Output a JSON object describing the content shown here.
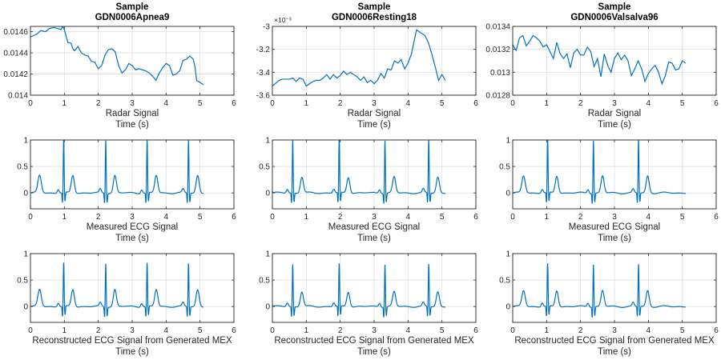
{
  "colors": {
    "line": "#0072bd",
    "axes": "#262626",
    "grid": "#dfdfdf",
    "background": "#ffffff"
  },
  "chart_data": [
    {
      "type": "line",
      "row": 0,
      "col": 0,
      "title": [
        "Sample",
        "GDN0006Apnea9"
      ],
      "xlabel": "Time (s)",
      "sublabel": "Radar Signal",
      "xlim": [
        0,
        6
      ],
      "ylim": [
        0.014,
        0.01465
      ],
      "xticks": [
        0,
        1,
        2,
        3,
        4,
        5,
        6
      ],
      "yticks": [
        0.014,
        0.0142,
        0.0144,
        0.0146
      ],
      "ytick_labels": [
        "0.014",
        "0.0142",
        "0.0144",
        "0.0146"
      ],
      "grid": true,
      "series": [
        {
          "x": [
            0,
            0.2,
            0.3,
            0.45,
            0.55,
            0.7,
            0.8,
            0.9,
            0.95,
            1.0,
            1.05,
            1.1,
            1.2,
            1.25,
            1.3,
            1.4,
            1.5,
            1.6,
            1.7,
            1.8,
            1.9,
            2.0,
            2.1,
            2.2,
            2.3,
            2.4,
            2.5,
            2.6,
            2.7,
            2.8,
            2.9,
            3.0,
            3.1,
            3.2,
            3.3,
            3.4,
            3.5,
            3.6,
            3.7,
            3.8,
            3.9,
            4.0,
            4.1,
            4.2,
            4.3,
            4.4,
            4.5,
            4.6,
            4.7,
            4.8,
            4.85,
            4.9,
            5.0,
            5.1
          ],
          "y": [
            0.01455,
            0.01458,
            0.01461,
            0.0146,
            0.01463,
            0.01464,
            0.01463,
            0.01462,
            0.01465,
            0.01462,
            0.01456,
            0.0145,
            0.01449,
            0.01444,
            0.01442,
            0.01446,
            0.0144,
            0.01438,
            0.01437,
            0.01432,
            0.01431,
            0.01425,
            0.01428,
            0.01438,
            0.01443,
            0.01444,
            0.01441,
            0.01428,
            0.01421,
            0.01424,
            0.0143,
            0.01428,
            0.01424,
            0.01425,
            0.01424,
            0.01423,
            0.01421,
            0.01418,
            0.01414,
            0.01421,
            0.01426,
            0.0143,
            0.01428,
            0.01419,
            0.0142,
            0.01423,
            0.01433,
            0.01434,
            0.01437,
            0.01434,
            0.01427,
            0.01414,
            0.01412,
            0.0141
          ]
        }
      ]
    },
    {
      "type": "line",
      "row": 0,
      "col": 1,
      "title": [
        "Sample",
        "GDN0006Resting18"
      ],
      "xlabel": "Time (s)",
      "sublabel": "Radar Signal",
      "xlim": [
        0,
        6
      ],
      "ylim": [
        -3.6,
        -3.0
      ],
      "y_exponent": "×10⁻³",
      "xticks": [
        0,
        1,
        2,
        3,
        4,
        5,
        6
      ],
      "yticks": [
        -3.6,
        -3.4,
        -3.2,
        -3.0
      ],
      "ytick_labels": [
        "-3.6",
        "-3.4",
        "-3.2",
        "-3"
      ],
      "grid": true,
      "series": [
        {
          "x": [
            0,
            0.2,
            0.3,
            0.5,
            0.6,
            0.7,
            0.8,
            0.9,
            1.0,
            1.1,
            1.2,
            1.3,
            1.4,
            1.5,
            1.6,
            1.7,
            1.8,
            1.9,
            2.0,
            2.1,
            2.2,
            2.3,
            2.4,
            2.5,
            2.6,
            2.7,
            2.8,
            2.9,
            3.0,
            3.1,
            3.2,
            3.3,
            3.4,
            3.5,
            3.6,
            3.7,
            3.8,
            3.9,
            4.0,
            4.1,
            4.2,
            4.25,
            4.3,
            4.4,
            4.5,
            4.6,
            4.7,
            4.8,
            4.9,
            5.0,
            5.1
          ],
          "y": [
            -3.52,
            -3.47,
            -3.46,
            -3.46,
            -3.45,
            -3.48,
            -3.45,
            -3.46,
            -3.52,
            -3.5,
            -3.48,
            -3.47,
            -3.47,
            -3.45,
            -3.42,
            -3.46,
            -3.42,
            -3.45,
            -3.43,
            -3.39,
            -3.42,
            -3.4,
            -3.42,
            -3.44,
            -3.47,
            -3.44,
            -3.49,
            -3.47,
            -3.5,
            -3.47,
            -3.41,
            -3.45,
            -3.37,
            -3.38,
            -3.3,
            -3.32,
            -3.29,
            -3.37,
            -3.32,
            -3.24,
            -3.1,
            -3.03,
            -3.04,
            -3.06,
            -3.08,
            -3.14,
            -3.24,
            -3.35,
            -3.47,
            -3.42,
            -3.47
          ]
        }
      ]
    },
    {
      "type": "line",
      "row": 0,
      "col": 2,
      "title": [
        "Sample",
        "GDN0006Valsalva96"
      ],
      "xlabel": "Time (s)",
      "sublabel": "Radar Signal",
      "xlim": [
        0,
        6
      ],
      "ylim": [
        0.0128,
        0.0134
      ],
      "xticks": [
        0,
        1,
        2,
        3,
        4,
        5,
        6
      ],
      "yticks": [
        0.0128,
        0.013,
        0.0132,
        0.0134
      ],
      "ytick_labels": [
        "0.0128",
        "0.013",
        "0.0132",
        "0.0134"
      ],
      "grid": true,
      "series": [
        {
          "x": [
            0,
            0.1,
            0.2,
            0.3,
            0.4,
            0.5,
            0.6,
            0.7,
            0.8,
            0.9,
            1.0,
            1.1,
            1.2,
            1.3,
            1.4,
            1.5,
            1.6,
            1.7,
            1.8,
            1.9,
            2.0,
            2.1,
            2.2,
            2.3,
            2.4,
            2.5,
            2.6,
            2.7,
            2.8,
            2.9,
            3.0,
            3.1,
            3.2,
            3.3,
            3.4,
            3.5,
            3.6,
            3.7,
            3.8,
            3.9,
            4.0,
            4.1,
            4.2,
            4.3,
            4.4,
            4.5,
            4.6,
            4.7,
            4.8,
            4.9,
            5.0,
            5.1
          ],
          "y": [
            0.01324,
            0.01319,
            0.0133,
            0.01332,
            0.01323,
            0.01327,
            0.01332,
            0.0133,
            0.01327,
            0.01322,
            0.01324,
            0.01318,
            0.01312,
            0.01326,
            0.01316,
            0.01312,
            0.01316,
            0.01304,
            0.01317,
            0.0132,
            0.01315,
            0.01315,
            0.01322,
            0.01318,
            0.01305,
            0.01312,
            0.01296,
            0.01316,
            0.01306,
            0.013,
            0.01312,
            0.01317,
            0.01311,
            0.01315,
            0.0131,
            0.01297,
            0.01303,
            0.0131,
            0.01303,
            0.01292,
            0.01299,
            0.01303,
            0.01306,
            0.013,
            0.0129,
            0.01297,
            0.01309,
            0.01308,
            0.01302,
            0.01303,
            0.0131,
            0.01308
          ]
        }
      ]
    },
    {
      "type": "line",
      "row": 1,
      "col": 0,
      "xlabel": "Time (s)",
      "sublabel": "Measured ECG Signal",
      "xlim": [
        0,
        6
      ],
      "ylim": [
        -0.3,
        1.0
      ],
      "xticks": [
        0,
        1,
        2,
        3,
        4,
        5,
        6
      ],
      "yticks": [
        0,
        0.5,
        1
      ],
      "ytick_labels": [
        "0",
        "0.5",
        "1"
      ],
      "grid": true,
      "ecg": {
        "beats": [
          0.98,
          2.22,
          3.44,
          4.66
        ],
        "end": 5.1,
        "r_peak": 1.0,
        "t_wave": 0.33
      }
    },
    {
      "type": "line",
      "row": 1,
      "col": 1,
      "xlabel": "Time (s)",
      "sublabel": "Measured ECG Signal",
      "xlim": [
        0,
        6
      ],
      "ylim": [
        -0.3,
        1.0
      ],
      "xticks": [
        0,
        1,
        2,
        3,
        4,
        5,
        6
      ],
      "yticks": [
        0,
        0.5,
        1
      ],
      "ytick_labels": [
        "0",
        "0.5",
        "1"
      ],
      "grid": true,
      "ecg": {
        "beats": [
          0.6,
          1.97,
          3.32,
          4.61
        ],
        "end": 5.1,
        "r_peak": 1.0,
        "t_wave": 0.3
      }
    },
    {
      "type": "line",
      "row": 1,
      "col": 2,
      "xlabel": "Time (s)",
      "sublabel": "Measured ECG Signal",
      "xlim": [
        0,
        6
      ],
      "ylim": [
        -0.3,
        1.0
      ],
      "xticks": [
        0,
        1,
        2,
        3,
        4,
        5,
        6
      ],
      "yticks": [
        0,
        0.5,
        1
      ],
      "ytick_labels": [
        "0",
        "0.5",
        "1"
      ],
      "grid": true,
      "ecg": {
        "beats": [
          1.03,
          2.38,
          3.71
        ],
        "end": 5.1,
        "r_peak": 1.0,
        "t_wave": 0.32
      }
    },
    {
      "type": "line",
      "row": 2,
      "col": 0,
      "xlabel": "Time (s)",
      "sublabel": "Reconstructed ECG Signal from Generated MEX",
      "xlim": [
        0,
        6
      ],
      "ylim": [
        -0.3,
        1.0
      ],
      "xticks": [
        0,
        1,
        2,
        3,
        4,
        5,
        6
      ],
      "yticks": [
        0,
        0.5,
        1
      ],
      "ytick_labels": [
        "0",
        "0.5",
        "1"
      ],
      "grid": true,
      "ecg": {
        "beats": [
          0.98,
          2.22,
          3.44,
          4.66
        ],
        "end": 5.1,
        "r_peak": 0.82,
        "t_wave": 0.32
      }
    },
    {
      "type": "line",
      "row": 2,
      "col": 1,
      "xlabel": "Time (s)",
      "sublabel": "Reconstructed ECG Signal from Generated MEX",
      "xlim": [
        0,
        6
      ],
      "ylim": [
        -0.3,
        1.0
      ],
      "xticks": [
        0,
        1,
        2,
        3,
        4,
        5,
        6
      ],
      "yticks": [
        0,
        0.5,
        1
      ],
      "ytick_labels": [
        "0",
        "0.5",
        "1"
      ],
      "grid": true,
      "ecg": {
        "beats": [
          0.6,
          1.97,
          3.32,
          4.61
        ],
        "end": 5.1,
        "r_peak": 0.8,
        "t_wave": 0.28
      }
    },
    {
      "type": "line",
      "row": 2,
      "col": 2,
      "xlabel": "Time (s)",
      "sublabel": "Reconstructed ECG Signal from Generated MEX",
      "xlim": [
        0,
        6
      ],
      "ylim": [
        -0.3,
        1.0
      ],
      "xticks": [
        0,
        1,
        2,
        3,
        4,
        5,
        6
      ],
      "yticks": [
        0,
        0.5,
        1
      ],
      "ytick_labels": [
        "0",
        "0.5",
        "1"
      ],
      "grid": true,
      "ecg": {
        "beats": [
          1.03,
          2.38,
          3.71
        ],
        "end": 5.1,
        "r_peak": 0.8,
        "t_wave": 0.3
      }
    }
  ]
}
